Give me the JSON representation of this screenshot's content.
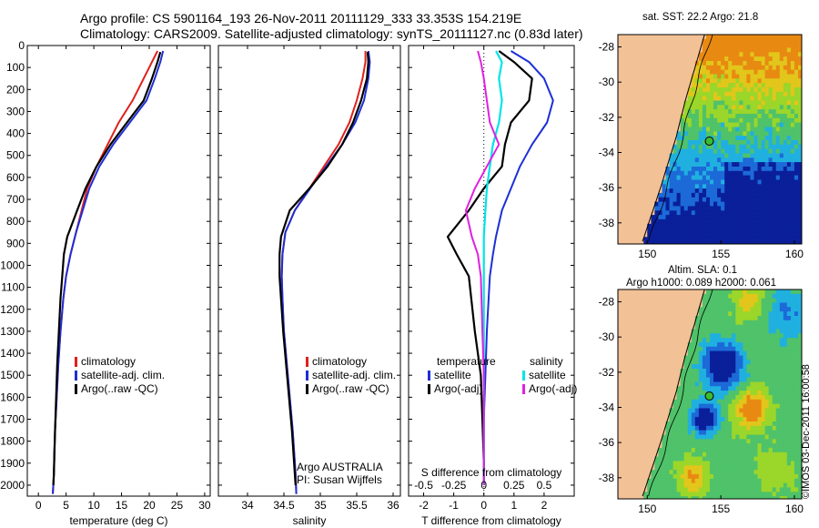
{
  "header": {
    "line1": "Argo profile: CS 5901164_193 26-Nov-2011 20111129_333 33.353S 154.219E",
    "line2": "Climatology: CARS2009. Satellite-adjusted climatology: synTS_20111127.nc (0.83d later)"
  },
  "colors": {
    "climatology": "#e0201b",
    "satellite": "#1d2fd6",
    "argo": "#000000",
    "sat_salinity": "#00e5e5",
    "argo_salinity_diff": "#e020e0",
    "land": "#f3c196"
  },
  "chart_data": [
    {
      "type": "line",
      "id": "temperature",
      "xlabel": "temperature (deg C)",
      "ylabel": "",
      "xlim": [
        -2,
        31
      ],
      "ylim": [
        0,
        2050
      ],
      "x_ticks": [
        0,
        5,
        10,
        15,
        20,
        25,
        30
      ],
      "y_ticks": [
        0,
        100,
        200,
        300,
        400,
        500,
        600,
        700,
        800,
        900,
        1000,
        1100,
        1200,
        1300,
        1400,
        1500,
        1600,
        1700,
        1800,
        1900,
        2000
      ],
      "legend": [
        "climatology",
        "satellite-adj. clim.",
        "Argo(..raw -QC)"
      ],
      "series": [
        {
          "name": "climatology",
          "x": [
            21.5,
            20.5,
            19.0,
            17.0,
            14.5,
            12.5,
            10.5,
            8.8,
            7.8,
            6.8,
            5.8,
            5.0,
            4.5,
            4.0,
            3.6,
            3.3,
            3.0,
            2.9,
            2.8,
            2.7,
            2.6
          ],
          "y": [
            25,
            75,
            150,
            250,
            350,
            450,
            550,
            650,
            750,
            850,
            950,
            1050,
            1150,
            1300,
            1450,
            1600,
            1750,
            1850,
            1950,
            2000,
            2040
          ]
        },
        {
          "name": "satellite-adj. clim.",
          "x": [
            22.5,
            22.0,
            21.0,
            19.5,
            16.5,
            13.5,
            11.0,
            9.2,
            8.0,
            6.8,
            5.8,
            5.0,
            4.5,
            4.0,
            3.6,
            3.3,
            3.0,
            2.9,
            2.8,
            2.7,
            2.6
          ],
          "y": [
            25,
            75,
            150,
            250,
            350,
            450,
            550,
            650,
            750,
            850,
            950,
            1050,
            1150,
            1300,
            1450,
            1600,
            1750,
            1850,
            1950,
            2000,
            2040
          ]
        },
        {
          "name": "Argo(..raw -QC)",
          "x": [
            22.0,
            21.5,
            20.5,
            19.0,
            16.0,
            13.0,
            10.5,
            8.5,
            7.0,
            5.2,
            4.6,
            4.3,
            4.0,
            3.7,
            3.4,
            3.2,
            3.0,
            2.9,
            2.8,
            2.7
          ],
          "y": [
            30,
            75,
            150,
            250,
            350,
            450,
            550,
            650,
            750,
            870,
            950,
            1050,
            1150,
            1300,
            1450,
            1600,
            1750,
            1850,
            1950,
            2000
          ]
        }
      ],
      "footer": []
    },
    {
      "type": "line",
      "id": "salinity",
      "xlabel": "salinity",
      "ylabel": "",
      "xlim": [
        33.6,
        36.1
      ],
      "ylim": [
        0,
        2050
      ],
      "x_ticks": [
        34,
        34.5,
        35,
        35.5,
        36
      ],
      "y_ticks": [],
      "legend": [
        "climatology",
        "satellite-adj. clim.",
        "Argo(..raw -QC)"
      ],
      "series": [
        {
          "name": "climatology",
          "x": [
            35.62,
            35.62,
            35.58,
            35.5,
            35.4,
            35.25,
            35.05,
            34.85,
            34.65,
            34.52,
            34.48,
            34.47,
            34.48,
            34.5,
            34.54,
            34.58,
            34.62,
            34.64,
            34.66,
            34.67
          ],
          "y": [
            25,
            75,
            150,
            250,
            350,
            450,
            550,
            650,
            750,
            850,
            950,
            1050,
            1150,
            1300,
            1450,
            1600,
            1750,
            1850,
            1950,
            2040
          ]
        },
        {
          "name": "satellite-adj. clim.",
          "x": [
            35.66,
            35.68,
            35.66,
            35.6,
            35.48,
            35.3,
            35.08,
            34.86,
            34.65,
            34.52,
            34.48,
            34.47,
            34.48,
            34.5,
            34.54,
            34.58,
            34.62,
            34.64,
            34.66,
            34.67
          ],
          "y": [
            25,
            75,
            150,
            250,
            350,
            450,
            550,
            650,
            750,
            850,
            950,
            1050,
            1150,
            1300,
            1450,
            1600,
            1750,
            1850,
            1950,
            2040
          ]
        },
        {
          "name": "Argo(..raw -QC)",
          "x": [
            35.65,
            35.66,
            35.64,
            35.56,
            35.45,
            35.3,
            35.1,
            34.85,
            34.58,
            34.46,
            34.44,
            34.44,
            34.46,
            34.49,
            34.53,
            34.57,
            34.61,
            34.63,
            34.65,
            34.66
          ],
          "y": [
            30,
            75,
            150,
            250,
            350,
            450,
            550,
            650,
            750,
            870,
            950,
            1050,
            1150,
            1300,
            1450,
            1600,
            1750,
            1850,
            1950,
            2000
          ]
        }
      ],
      "footer": [
        "Argo AUSTRALIA",
        "PI: Susan Wijffels"
      ]
    },
    {
      "type": "line",
      "id": "difference",
      "xlabel": "T difference from climatology",
      "secondary_xlabel": "S difference from climatology",
      "xlim": [
        -2.5,
        3.0
      ],
      "ylim": [
        0,
        2050
      ],
      "x_ticks": [
        -2,
        -1,
        0,
        1,
        2
      ],
      "secondary_ticks": [
        "-0.5",
        "-0.25",
        "0",
        "0.25",
        "0.5"
      ],
      "secondary_tick_positions": [
        -2,
        -1,
        0,
        1,
        2
      ],
      "legend_titles": [
        "temperature",
        "salinity"
      ],
      "legend_left": [
        "satellite",
        "Argo(-adj)"
      ],
      "legend_right": [
        "satellite",
        "Argo(-adj)"
      ],
      "series": [
        {
          "name": "temperature satellite",
          "x": [
            0.9,
            1.5,
            2.0,
            2.3,
            2.1,
            1.6,
            1.2,
            0.9,
            0.6,
            0.4,
            0.3,
            0.2,
            0.1,
            0.05,
            0.0,
            0.0,
            0.0
          ],
          "y": [
            25,
            75,
            150,
            250,
            350,
            450,
            550,
            650,
            750,
            870,
            950,
            1050,
            1300,
            1500,
            1700,
            1900,
            2000
          ]
        },
        {
          "name": "temperature Argo(-adj)",
          "x": [
            0.5,
            1.0,
            1.6,
            1.5,
            0.9,
            0.7,
            0.6,
            0.0,
            -0.5,
            -1.2,
            -0.9,
            -0.5,
            -0.3,
            -0.1,
            -0.05,
            0.0,
            0.0
          ],
          "y": [
            25,
            75,
            150,
            250,
            350,
            450,
            550,
            650,
            750,
            870,
            950,
            1050,
            1300,
            1500,
            1700,
            1900,
            2000
          ]
        },
        {
          "name": "salinity satellite",
          "x": [
            0.4,
            0.6,
            0.5,
            0.6,
            0.5,
            0.3,
            0.2,
            0.1,
            0.05,
            0.0,
            0.0,
            0.0,
            0.0,
            0.0,
            0.0,
            0.0
          ],
          "y": [
            25,
            75,
            150,
            250,
            350,
            450,
            550,
            650,
            750,
            870,
            950,
            1050,
            1300,
            1500,
            1700,
            2000
          ]
        },
        {
          "name": "salinity Argo(-adj)",
          "x": [
            -0.2,
            -0.1,
            0.0,
            0.1,
            0.2,
            0.5,
            0.1,
            -0.3,
            -0.6,
            -0.4,
            -0.2,
            -0.1,
            -0.05,
            0.0,
            0.0,
            0.0
          ],
          "y": [
            25,
            75,
            150,
            250,
            350,
            450,
            550,
            650,
            750,
            870,
            950,
            1050,
            1300,
            1500,
            1700,
            2000
          ]
        }
      ]
    },
    {
      "type": "heatmap",
      "id": "sst-map",
      "title": "sat. SST: 22.2  Argo: 21.8",
      "x_ticks": [
        150,
        155,
        160
      ],
      "y_ticks": [
        -28,
        -30,
        -32,
        -34,
        -36,
        -38
      ],
      "xlim": [
        148,
        160.5
      ],
      "ylim": [
        -39.2,
        -27.3
      ],
      "argo_position": [
        154.219,
        -33.353
      ]
    },
    {
      "type": "heatmap",
      "id": "sla-map",
      "title_lines": [
        "Altim. SLA: 0.1",
        "Argo h1000: 0.089 h2000: 0.061"
      ],
      "x_ticks": [
        150,
        155,
        160
      ],
      "y_ticks": [
        -28,
        -30,
        -32,
        -34,
        -36,
        -38
      ],
      "xlim": [
        148,
        160.5
      ],
      "ylim": [
        -39.2,
        -27.3
      ],
      "argo_position": [
        154.219,
        -33.353
      ]
    }
  ],
  "stamp": "©IMOS 03-Dec-2011 16:00:58"
}
